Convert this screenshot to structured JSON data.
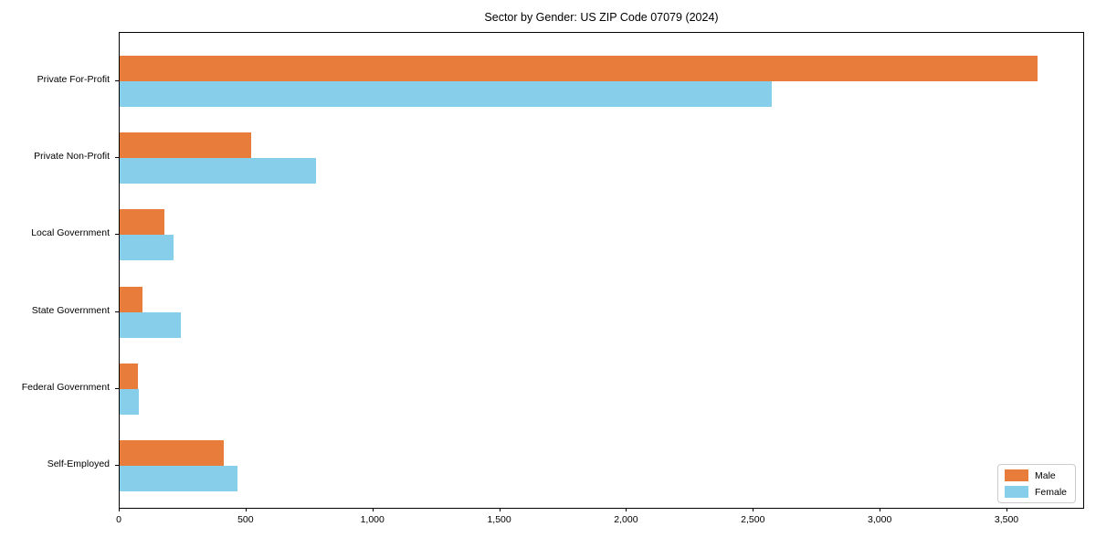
{
  "chart_data": {
    "type": "bar",
    "orientation": "horizontal",
    "title": "Sector by Gender: US ZIP Code 07079 (2024)",
    "categories": [
      "Private For-Profit",
      "Private Non-Profit",
      "Local Government",
      "State Government",
      "Federal Government",
      "Self-Employed"
    ],
    "series": [
      {
        "name": "Male",
        "color": "#E87D3B",
        "values": [
          3620,
          520,
          178,
          90,
          73,
          410
        ]
      },
      {
        "name": "Female",
        "color": "#87CEEB",
        "values": [
          2570,
          775,
          213,
          240,
          77,
          465
        ]
      }
    ],
    "xlabel": "",
    "ylabel": "",
    "xlim": [
      0,
      3806
    ],
    "xticks": [
      0,
      500,
      1000,
      1500,
      2000,
      2500,
      3000,
      3500
    ],
    "xtick_labels": [
      "0",
      "500",
      "1,000",
      "1,500",
      "2,000",
      "2,500",
      "3,000",
      "3,500"
    ],
    "grid": false,
    "legend_position": "lower right",
    "axis_color": "#000000",
    "legend_border_color": "#cccccc"
  }
}
